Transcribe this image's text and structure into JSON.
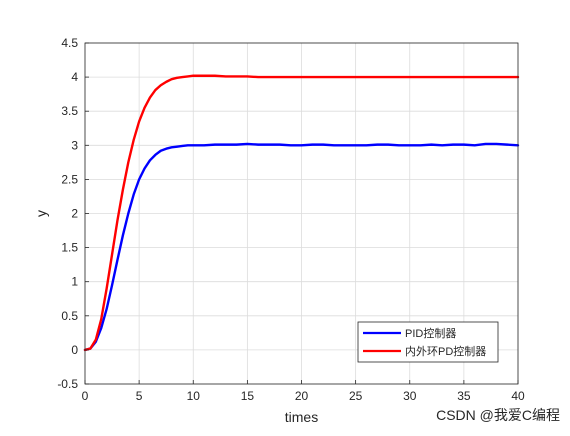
{
  "chart_data": {
    "type": "line",
    "xlabel": "times",
    "ylabel": "y",
    "xlim": [
      0,
      40
    ],
    "ylim": [
      -0.5,
      4.5
    ],
    "xticks": [
      0,
      5,
      10,
      15,
      20,
      25,
      30,
      35,
      40
    ],
    "yticks": [
      -0.5,
      0,
      0.5,
      1,
      1.5,
      2,
      2.5,
      3,
      3.5,
      4,
      4.5
    ],
    "xtick_labels": [
      "0",
      "5",
      "10",
      "15",
      "20",
      "25",
      "30",
      "35",
      "40"
    ],
    "ytick_labels": [
      "-0.5",
      "0",
      "0.5",
      "1",
      "1.5",
      "2",
      "2.5",
      "3",
      "3.5",
      "4",
      "4.5"
    ],
    "grid": true,
    "legend_position": "bottom-right",
    "series": [
      {
        "name": "PID控制器",
        "color": "#0000ff",
        "x": [
          0,
          0.5,
          1,
          1.5,
          2,
          2.5,
          3,
          3.5,
          4,
          4.5,
          5,
          5.5,
          6,
          6.5,
          7,
          7.5,
          8,
          8.5,
          9,
          9.5,
          10,
          11,
          12,
          13,
          14,
          15,
          16,
          17,
          18,
          19,
          20,
          21,
          22,
          23,
          24,
          25,
          26,
          27,
          28,
          29,
          30,
          31,
          32,
          33,
          34,
          35,
          36,
          37,
          38,
          39,
          40
        ],
        "y": [
          0,
          0.02,
          0.12,
          0.32,
          0.6,
          0.95,
          1.32,
          1.68,
          2.0,
          2.28,
          2.5,
          2.66,
          2.78,
          2.86,
          2.92,
          2.95,
          2.97,
          2.98,
          2.99,
          3.0,
          3.0,
          3.0,
          3.01,
          3.01,
          3.01,
          3.02,
          3.01,
          3.01,
          3.01,
          3.0,
          3.0,
          3.01,
          3.01,
          3.0,
          3.0,
          3.0,
          3.0,
          3.01,
          3.01,
          3.0,
          3.0,
          3.0,
          3.01,
          3.0,
          3.01,
          3.01,
          3.0,
          3.02,
          3.02,
          3.01,
          3.0
        ]
      },
      {
        "name": "内外环PD控制器",
        "color": "#ff0000",
        "x": [
          0,
          0.5,
          1,
          1.5,
          2,
          2.5,
          3,
          3.5,
          4,
          4.5,
          5,
          5.5,
          6,
          6.5,
          7,
          7.5,
          8,
          8.5,
          9,
          9.5,
          10,
          10.5,
          11,
          11.5,
          12,
          13,
          14,
          15,
          16,
          17,
          18,
          19,
          20,
          22,
          24,
          26,
          28,
          30,
          32,
          34,
          36,
          38,
          40
        ],
        "y": [
          0,
          0.02,
          0.15,
          0.45,
          0.9,
          1.4,
          1.9,
          2.35,
          2.75,
          3.08,
          3.35,
          3.55,
          3.7,
          3.81,
          3.88,
          3.93,
          3.97,
          3.99,
          4.0,
          4.01,
          4.02,
          4.02,
          4.02,
          4.02,
          4.02,
          4.01,
          4.01,
          4.01,
          4.0,
          4.0,
          4.0,
          4.0,
          4.0,
          4.0,
          4.0,
          4.0,
          4.0,
          4.0,
          4.0,
          4.0,
          4.0,
          4.0,
          4.0
        ]
      }
    ]
  },
  "watermark": "CSDN @我爱C编程"
}
